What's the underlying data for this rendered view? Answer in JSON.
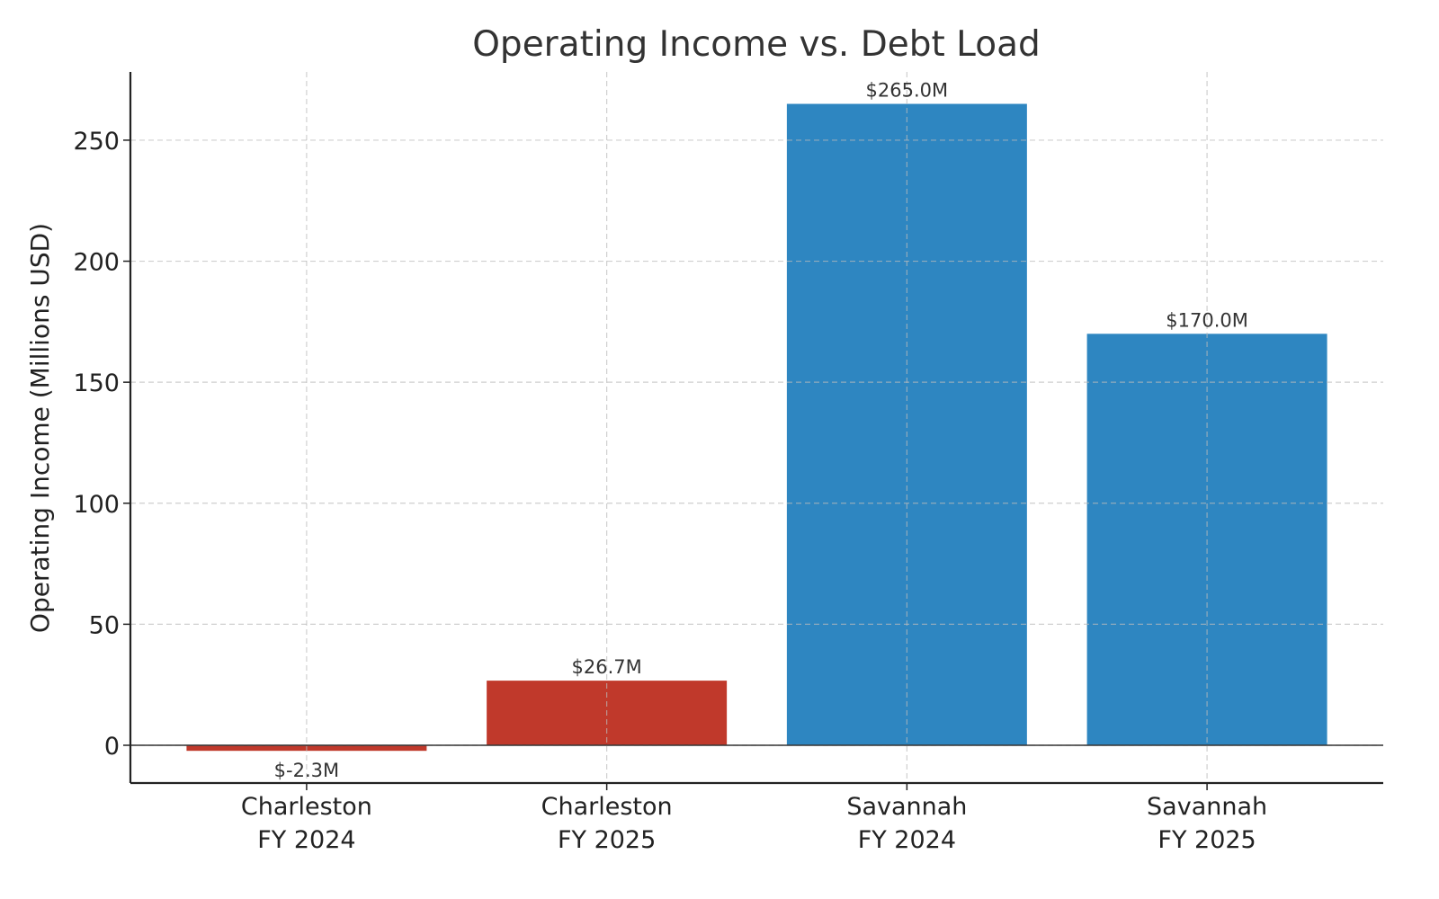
{
  "chart_data": {
    "type": "bar",
    "title": "Operating Income vs. Debt Load",
    "xlabel": "",
    "ylabel": "Operating Income (Millions USD)",
    "categories": [
      [
        "Charleston",
        "FY 2024"
      ],
      [
        "Charleston",
        "FY 2025"
      ],
      [
        "Savannah",
        "FY 2024"
      ],
      [
        "Savannah",
        "FY 2025"
      ]
    ],
    "values": [
      -2.3,
      26.7,
      265.0,
      170.0
    ],
    "data_labels": [
      "$-2.3M",
      "$26.7M",
      "$265.0M",
      "$170.0M"
    ],
    "colors": [
      "#c0392b",
      "#c0392b",
      "#2e86c1",
      "#2e86c1"
    ],
    "ylim": [
      -15.6,
      278.2
    ],
    "yticks": [
      0,
      50,
      100,
      150,
      200,
      250
    ],
    "grid": true,
    "legend": "none"
  }
}
